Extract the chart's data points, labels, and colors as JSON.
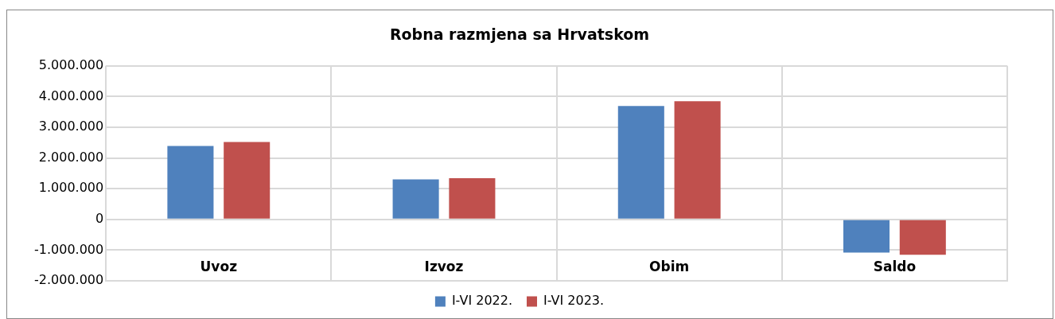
{
  "chart_data": {
    "type": "bar",
    "title": "Robna razmjena sa Hrvatskom",
    "categories": [
      "Uvoz",
      "Izvoz",
      "Obim",
      "Saldo"
    ],
    "series": [
      {
        "name": "I-VI 2022.",
        "color": "#4f81bd",
        "values": [
          2390000,
          1300000,
          3690000,
          -1080000
        ]
      },
      {
        "name": "I-VI 2023.",
        "color": "#c0504d",
        "values": [
          2520000,
          1340000,
          3850000,
          -1150000
        ]
      }
    ],
    "ylim": [
      -2000000,
      5000000
    ],
    "yticks": [
      {
        "value": 5000000,
        "label": "5.000.000"
      },
      {
        "value": 4000000,
        "label": "4.000.000"
      },
      {
        "value": 3000000,
        "label": "3.000.000"
      },
      {
        "value": 2000000,
        "label": "2.000.000"
      },
      {
        "value": 1000000,
        "label": "1.000.000"
      },
      0,
      {
        "value": -1000000,
        "label": "-1.000.000"
      },
      {
        "value": -2000000,
        "label": "-2.000.000"
      }
    ],
    "grid": true,
    "legend": "bottom"
  }
}
